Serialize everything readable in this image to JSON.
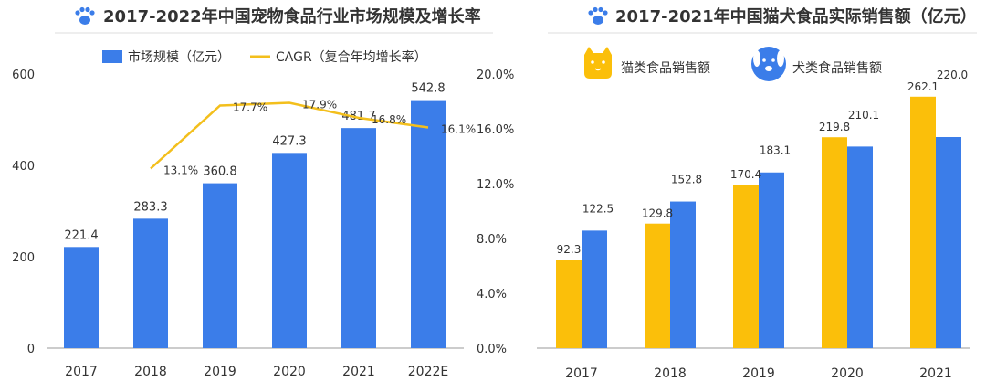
{
  "colors": {
    "market_bar": "#3b7de9",
    "cagr_line": "#f3bf1c",
    "cat_bar": "#fbbf0a",
    "dog_bar": "#3b7de9",
    "title_text": "#333333",
    "paw_icon": "#3b7de9",
    "axis_text": "#333333"
  },
  "chart_data": [
    {
      "type": "bar",
      "title": "2017-2022年中国宠物食品行业市场规模及增长率",
      "categories": [
        "2017",
        "2018",
        "2019",
        "2020",
        "2021",
        "2022E"
      ],
      "series": [
        {
          "name": "市场规模（亿元）",
          "kind": "bar",
          "axis": "left",
          "values": [
            221.4,
            283.3,
            360.8,
            427.3,
            481.7,
            542.8
          ],
          "labels": [
            "221.4",
            "283.3",
            "360.8",
            "427.3",
            "481.7",
            "542.8"
          ]
        },
        {
          "name": "CAGR（复合年均增长率）",
          "kind": "line",
          "axis": "right",
          "values": [
            null,
            13.1,
            17.7,
            17.9,
            16.8,
            16.1
          ],
          "labels": [
            "",
            "13.1%",
            "17.7%",
            "17.9%",
            "16.8%",
            "16.1%"
          ]
        }
      ],
      "y_left": {
        "range": [
          0,
          600
        ],
        "ticks": [
          0,
          200,
          400,
          600
        ],
        "tick_labels": [
          "0",
          "200",
          "400",
          "600"
        ]
      },
      "y_right": {
        "range": [
          0,
          20
        ],
        "ticks": [
          0,
          4,
          8,
          12,
          16,
          20
        ],
        "tick_labels": [
          "0.0%",
          "4.0%",
          "8.0%",
          "12.0%",
          "16.0%",
          "20.0%"
        ]
      },
      "grid": false,
      "legend": "top-center"
    },
    {
      "type": "bar",
      "title": "2017-2021年中国猫犬食品实际销售额（亿元）",
      "categories": [
        "2017",
        "2018",
        "2019",
        "2020",
        "2021"
      ],
      "series": [
        {
          "name": "猫类食品销售额",
          "icon": "cat-icon",
          "values": [
            92.3,
            129.8,
            170.4,
            219.8,
            262.1
          ],
          "labels": [
            "92.3",
            "129.8",
            "170.4",
            "219.8",
            "262.1"
          ]
        },
        {
          "name": "犬类食品销售额",
          "icon": "dog-icon",
          "values": [
            122.5,
            152.8,
            183.1,
            210.1,
            220.0
          ],
          "labels": [
            "122.5",
            "152.8",
            "183.1",
            "210.1",
            "220.0"
          ]
        }
      ],
      "y_range": [
        0,
        280
      ],
      "grid": false,
      "legend": "top-left"
    }
  ]
}
